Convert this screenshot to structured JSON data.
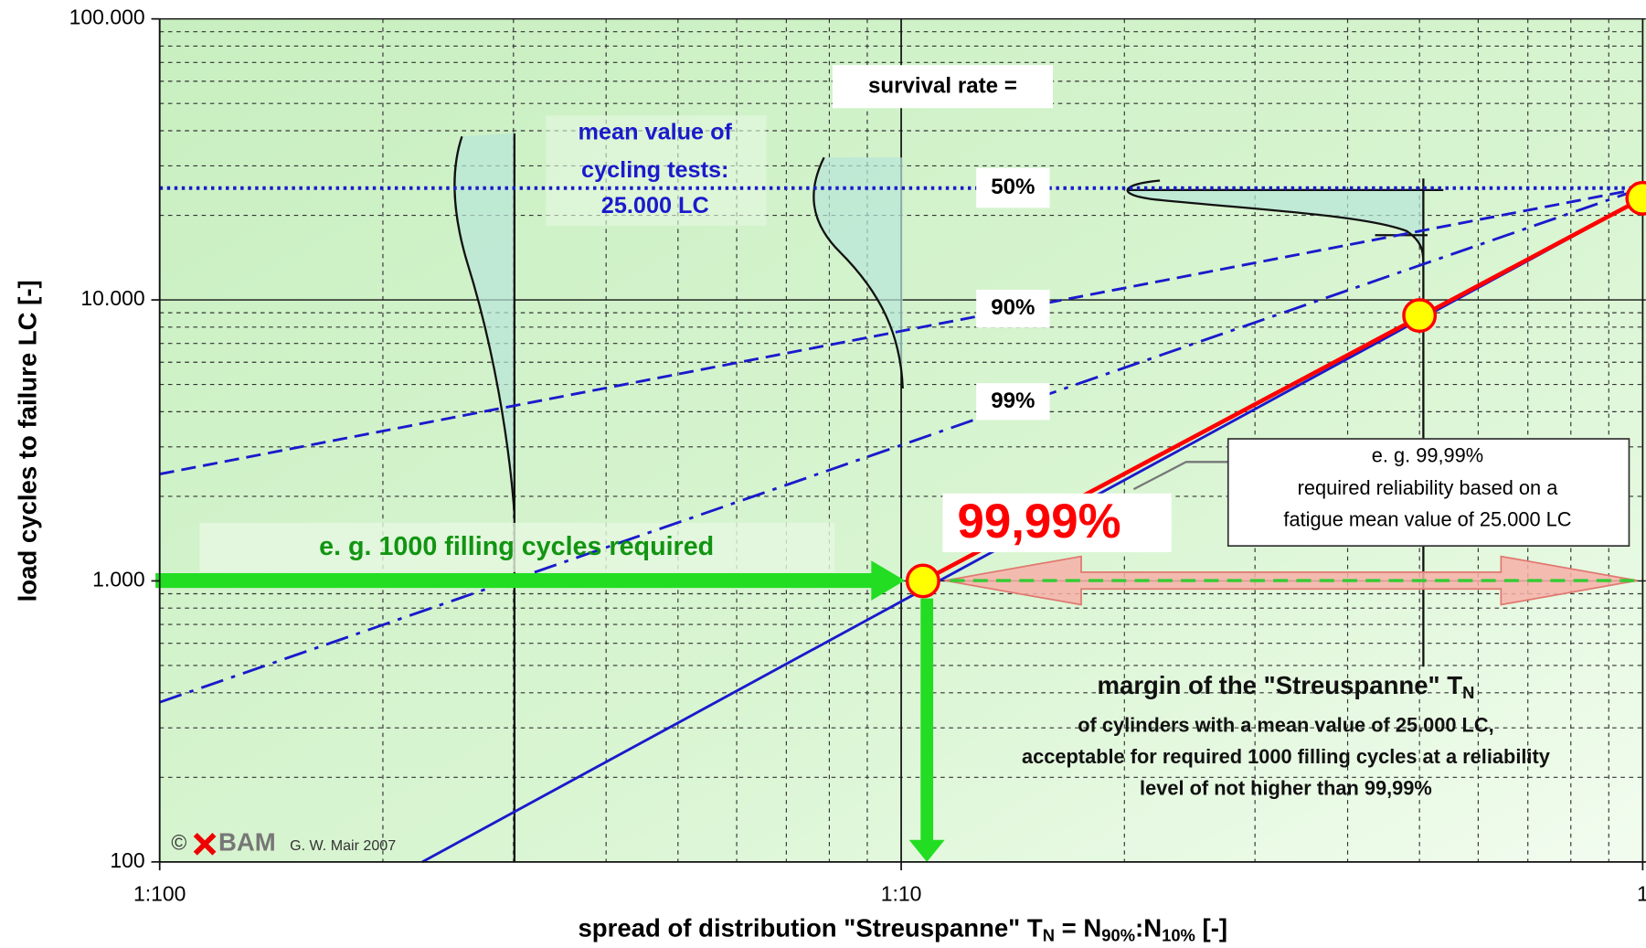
{
  "chart_data": {
    "type": "line",
    "x_log": true,
    "y_log": true,
    "grid": true,
    "xlim": [
      0.01,
      1
    ],
    "ylim": [
      100,
      100000
    ],
    "xticks": [
      {
        "value": 0.01,
        "label": "1:100"
      },
      {
        "value": 0.1,
        "label": "1:10"
      },
      1
    ],
    "yticks": [
      {
        "value": 100000,
        "label": "100.000"
      },
      {
        "value": 10000,
        "label": "10.000"
      },
      {
        "value": 1000,
        "label": "1.000"
      },
      100
    ],
    "xminorticks": [
      0.02,
      0.03,
      0.04,
      0.05,
      0.06,
      0.07,
      0.08,
      0.09,
      0.2,
      0.3,
      0.4,
      0.5,
      0.6,
      0.7,
      0.8,
      0.9
    ],
    "yminorticks": [
      200,
      300,
      400,
      500,
      600,
      700,
      800,
      900,
      2000,
      3000,
      4000,
      5000,
      6000,
      7000,
      8000,
      9000,
      20000,
      30000,
      40000,
      50000,
      60000,
      70000,
      80000,
      90000
    ],
    "xlabel_parts": [
      "spread of distribution \"Streuspanne\" T",
      "N",
      " = N",
      "90%",
      ":N",
      "10%",
      " [-]"
    ],
    "ylabel": "load cycles to failure LC [-]",
    "series": [
      {
        "name": "50%",
        "color": "#1a1acc",
        "line_style": "dotted",
        "x": [
          0.01,
          1
        ],
        "values": [
          25000,
          25000
        ]
      },
      {
        "name": "90%",
        "color": "#1a1acc",
        "line_style": "dashed",
        "x": [
          0.01,
          1
        ],
        "values": [
          2400,
          25000
        ]
      },
      {
        "name": "99%",
        "color": "#1a1acc",
        "line_style": "dashdot",
        "x": [
          0.01,
          1
        ],
        "values": [
          370,
          25000
        ]
      },
      {
        "name": "99,99%",
        "color": "#1a1acc",
        "line_style": "solid",
        "x": [
          0.0226,
          1
        ],
        "values": [
          100,
          23000
        ]
      }
    ],
    "highlight": {
      "color": "#ff0000",
      "x": [
        0.107,
        1
      ],
      "values": [
        1000,
        23000
      ]
    },
    "points": {
      "color": "#ffff00",
      "edge": "#ff0000",
      "x": [
        0.107,
        0.5,
        1
      ],
      "values": [
        1000,
        8800,
        23000
      ]
    },
    "annotations": {
      "survival": "survival rate =",
      "mean_value": [
        "mean value of",
        "cycling tests:",
        "25.000 LC"
      ],
      "required": "e. g. 1000 filling cycles required",
      "box": [
        "e. g. 99,99%",
        "required reliability based on a",
        "fatigue mean value of 25.000 LC"
      ],
      "margin_parts": [
        "margin of the \"Streuspanne\" T",
        "N"
      ],
      "margin_lines": [
        "of cylinders with a mean value of 25.000 LC,",
        "acceptable for required 1000 filling cycles at a reliability",
        "level of not higher than 99,99%"
      ],
      "copyright": "©",
      "logo": "BAM",
      "author": "G. W. Mair 2007"
    }
  }
}
